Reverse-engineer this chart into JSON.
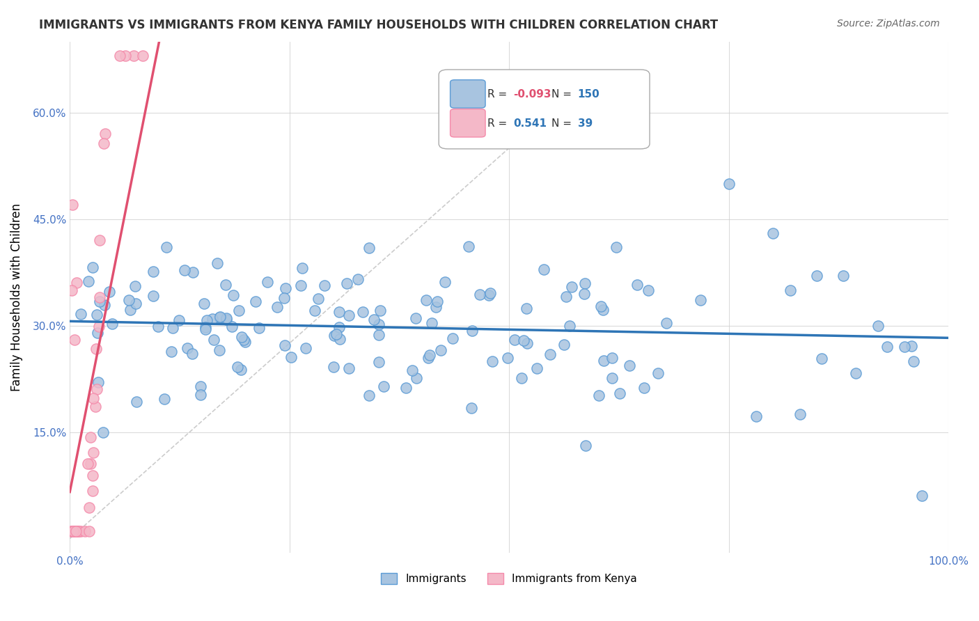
{
  "title": "IMMIGRANTS VS IMMIGRANTS FROM KENYA FAMILY HOUSEHOLDS WITH CHILDREN CORRELATION CHART",
  "source": "Source: ZipAtlas.com",
  "xlabel": "",
  "ylabel": "Family Households with Children",
  "xlim": [
    0,
    1.0
  ],
  "ylim": [
    -0.02,
    0.7
  ],
  "blue_R": -0.093,
  "blue_N": 150,
  "pink_R": 0.541,
  "pink_N": 39,
  "blue_color": "#a8c4e0",
  "blue_edge": "#5b9bd5",
  "pink_color": "#f4b8c8",
  "pink_edge": "#f48aaa",
  "blue_line_color": "#2e75b6",
  "pink_line_color": "#e05070",
  "grid_color": "#cccccc",
  "background_color": "#ffffff"
}
